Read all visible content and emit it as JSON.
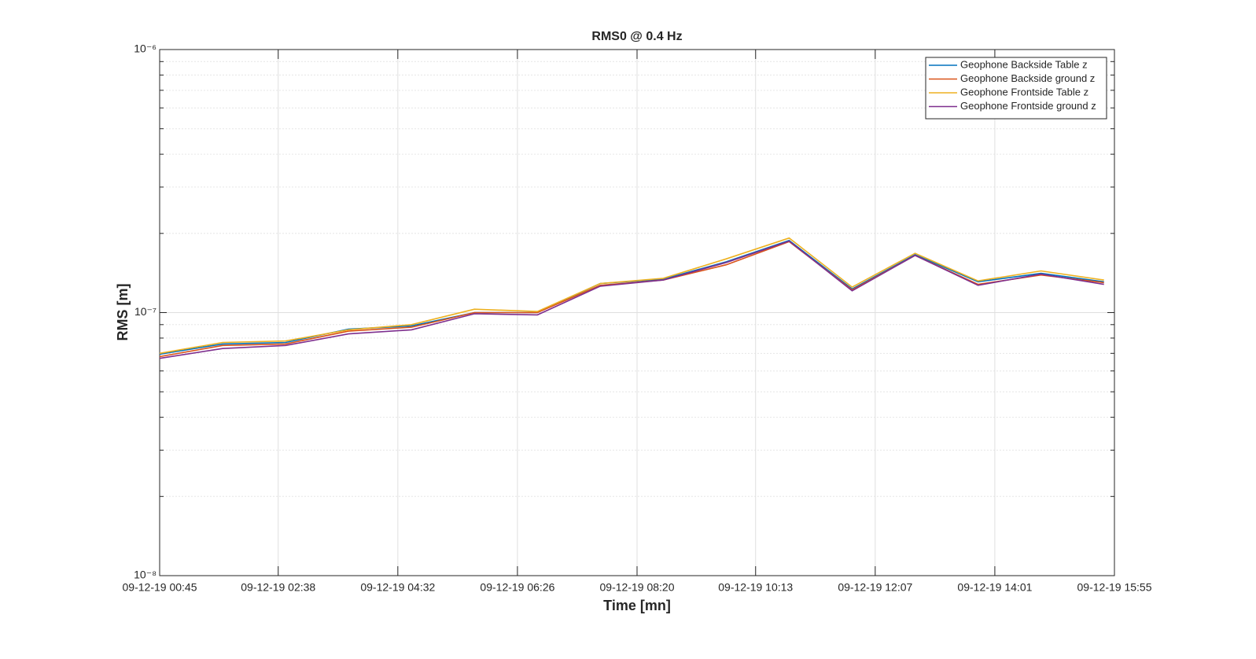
{
  "chart_data": {
    "type": "line",
    "title": "RMS0 @ 0.4 Hz",
    "xlabel": "Time [mn]",
    "ylabel": "RMS [m]",
    "log_y": true,
    "grid": true,
    "minor_grid": true,
    "legend": "upper right",
    "x": [
      "09-12-19 00:45",
      "09-12-19 01:45",
      "09-12-19 02:45",
      "09-12-19 03:45",
      "09-12-19 04:45",
      "09-12-19 05:45",
      "09-12-19 06:45",
      "09-12-19 07:45",
      "09-12-19 08:45",
      "09-12-19 09:45",
      "09-12-19 10:45",
      "09-12-19 11:45",
      "09-12-19 12:45",
      "09-12-19 13:45",
      "09-12-19 14:45",
      "09-12-19 15:45"
    ],
    "xlim": [
      "09-12-19 00:45",
      "09-12-19 15:55"
    ],
    "xticks": [
      "09-12-19 00:45",
      "09-12-19 02:38",
      "09-12-19 04:32",
      "09-12-19 06:26",
      "09-12-19 08:20",
      "09-12-19 10:13",
      "09-12-19 12:07",
      "09-12-19 14:01",
      "09-12-19 15:55"
    ],
    "ylim": [
      1e-08,
      1e-06
    ],
    "yticks": [
      {
        "value": 1e-08,
        "label": "10⁻⁸"
      },
      {
        "value": 1e-07,
        "label": "10⁻⁷"
      },
      {
        "value": 1e-06,
        "label": "10⁻⁶"
      }
    ],
    "series": [
      {
        "name": "Geophone Backside Table z",
        "color": "#0072BD",
        "values": [
          6.95e-08,
          7.6e-08,
          7.7e-08,
          8.65e-08,
          8.9e-08,
          1e-07,
          1e-07,
          1.29e-07,
          1.34e-07,
          1.56e-07,
          1.88e-07,
          1.23e-07,
          1.66e-07,
          1.31e-07,
          1.41e-07,
          1.31e-07
        ]
      },
      {
        "name": "Geophone Backside ground z",
        "color": "#D95319",
        "values": [
          6.8e-08,
          7.5e-08,
          7.6e-08,
          8.5e-08,
          8.8e-08,
          1e-07,
          1e-07,
          1.27e-07,
          1.33e-07,
          1.52e-07,
          1.86e-07,
          1.22e-07,
          1.65e-07,
          1.28e-07,
          1.39e-07,
          1.3e-07
        ]
      },
      {
        "name": "Geophone Frontside Table z",
        "color": "#EDB120",
        "values": [
          7e-08,
          7.7e-08,
          7.8e-08,
          8.6e-08,
          9e-08,
          1.03e-07,
          1.01e-07,
          1.29e-07,
          1.35e-07,
          1.6e-07,
          1.92e-07,
          1.25e-07,
          1.68e-07,
          1.32e-07,
          1.44e-07,
          1.33e-07
        ]
      },
      {
        "name": "Geophone Frontside ground z",
        "color": "#7E2F8E",
        "values": [
          6.7e-08,
          7.3e-08,
          7.5e-08,
          8.3e-08,
          8.6e-08,
          9.9e-08,
          9.8e-08,
          1.26e-07,
          1.33e-07,
          1.55e-07,
          1.87e-07,
          1.21e-07,
          1.65e-07,
          1.27e-07,
          1.4e-07,
          1.28e-07
        ]
      }
    ]
  }
}
